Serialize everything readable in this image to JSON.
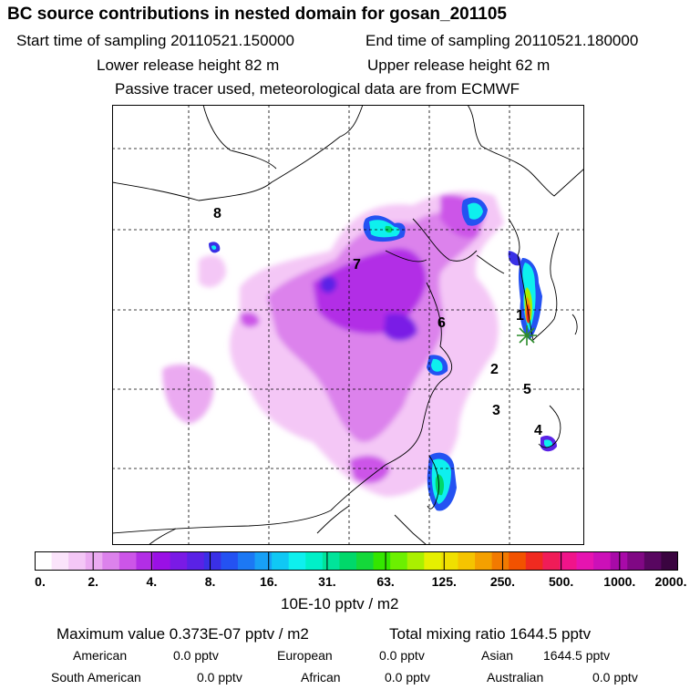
{
  "header": {
    "title": "BC  source contributions in nested domain for gosan_201105",
    "start_label": "Start time of sampling 20110521.150000",
    "end_label": "End time of sampling 20110521.180000",
    "lower_height": "Lower release height   82 m",
    "upper_height": "Upper release height   62 m",
    "tracer_note": "Passive tracer used, meteorological data are from ECMWF"
  },
  "map": {
    "region_labels": [
      "1",
      "2",
      "3",
      "4",
      "5",
      "6",
      "7",
      "8"
    ],
    "receptor": "gosan"
  },
  "colorbar": {
    "ticks": [
      "0.",
      "2.",
      "4.",
      "8.",
      "16.",
      "31.",
      "63.",
      "125.",
      "250.",
      "500.",
      "1000.",
      "2000."
    ],
    "colors": [
      "#ffffff",
      "#fbe4fb",
      "#f4c7f6",
      "#ebaaf1",
      "#dc82ec",
      "#cc55e8",
      "#b22ee6",
      "#9a10e6",
      "#7a1ae6",
      "#5a22e6",
      "#3a30e6",
      "#2452f2",
      "#1c78f4",
      "#18a0f6",
      "#10c8f4",
      "#0ef0ee",
      "#00f0c8",
      "#00e49a",
      "#00d86a",
      "#14d83a",
      "#34e600",
      "#6cf000",
      "#aaf000",
      "#e6f000",
      "#f0e000",
      "#f5c400",
      "#f4a000",
      "#f27a00",
      "#f25200",
      "#f02a20",
      "#f01c58",
      "#f0148a",
      "#e614b0",
      "#cc10b8",
      "#a80aa8",
      "#800884",
      "#580660",
      "#3a0440"
    ],
    "units": "10E-10 pptv / m2"
  },
  "summary": {
    "max_value": "Maximum value  0.373E-07 pptv / m2",
    "total_mixing": "Total mixing ratio     1644.5 pptv",
    "american_label": "American",
    "american_value": "0.0 pptv",
    "european_label": "European",
    "european_value": "0.0 pptv",
    "asian_label": "Asian",
    "asian_value": "1644.5 pptv",
    "south_american_label": "South American",
    "south_american_value": "0.0 pptv",
    "african_label": "African",
    "african_value": "0.0 pptv",
    "australian_label": "Australian",
    "australian_value": "0.0 pptv"
  }
}
